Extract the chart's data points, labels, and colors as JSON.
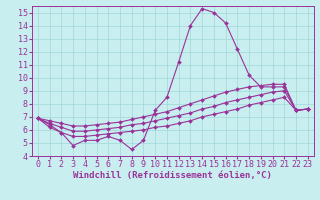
{
  "xlabel": "Windchill (Refroidissement éolien,°C)",
  "bg_color": "#c8eef0",
  "grid_color": "#a0d8d8",
  "line_color": "#993399",
  "xlim": [
    -0.5,
    23.5
  ],
  "ylim": [
    4,
    15.5
  ],
  "xticks": [
    0,
    1,
    2,
    3,
    4,
    5,
    6,
    7,
    8,
    9,
    10,
    11,
    12,
    13,
    14,
    15,
    16,
    17,
    18,
    19,
    20,
    21,
    22,
    23
  ],
  "yticks": [
    4,
    5,
    6,
    7,
    8,
    9,
    10,
    11,
    12,
    13,
    14,
    15
  ],
  "line1_x": [
    0,
    1,
    2,
    3,
    4,
    5,
    6,
    7,
    8,
    9,
    10,
    11,
    12,
    13,
    14,
    15,
    16,
    17,
    18,
    19,
    20,
    21,
    22,
    23
  ],
  "line1_y": [
    6.9,
    6.4,
    5.8,
    4.8,
    5.2,
    5.2,
    5.5,
    5.2,
    4.5,
    5.2,
    7.5,
    8.5,
    11.2,
    14.0,
    15.3,
    15.0,
    14.2,
    12.2,
    10.2,
    9.3,
    9.3,
    9.3,
    7.5,
    7.6
  ],
  "line2_x": [
    0,
    1,
    2,
    3,
    4,
    5,
    6,
    7,
    8,
    9,
    10,
    11,
    12,
    13,
    14,
    15,
    16,
    17,
    18,
    19,
    20,
    21,
    22,
    23
  ],
  "line2_y": [
    6.9,
    6.7,
    6.5,
    6.3,
    6.3,
    6.4,
    6.5,
    6.6,
    6.8,
    7.0,
    7.2,
    7.4,
    7.7,
    8.0,
    8.3,
    8.6,
    8.9,
    9.1,
    9.3,
    9.4,
    9.5,
    9.5,
    7.5,
    7.6
  ],
  "line3_x": [
    0,
    1,
    2,
    3,
    4,
    5,
    6,
    7,
    8,
    9,
    10,
    11,
    12,
    13,
    14,
    15,
    16,
    17,
    18,
    19,
    20,
    21,
    22,
    23
  ],
  "line3_y": [
    6.9,
    6.5,
    6.2,
    5.9,
    5.9,
    6.0,
    6.1,
    6.2,
    6.4,
    6.5,
    6.7,
    6.9,
    7.1,
    7.3,
    7.6,
    7.8,
    8.1,
    8.3,
    8.5,
    8.7,
    8.9,
    9.0,
    7.5,
    7.6
  ],
  "line4_x": [
    0,
    1,
    2,
    3,
    4,
    5,
    6,
    7,
    8,
    9,
    10,
    11,
    12,
    13,
    14,
    15,
    16,
    17,
    18,
    19,
    20,
    21,
    22,
    23
  ],
  "line4_y": [
    6.9,
    6.2,
    5.8,
    5.5,
    5.5,
    5.6,
    5.7,
    5.8,
    5.9,
    6.0,
    6.2,
    6.3,
    6.5,
    6.7,
    7.0,
    7.2,
    7.4,
    7.6,
    7.9,
    8.1,
    8.3,
    8.5,
    7.5,
    7.6
  ],
  "marker": "D",
  "markersize": 2.0,
  "linewidth": 0.8,
  "font_family": "monospace",
  "xlabel_fontsize": 6.5,
  "tick_fontsize": 6.0
}
